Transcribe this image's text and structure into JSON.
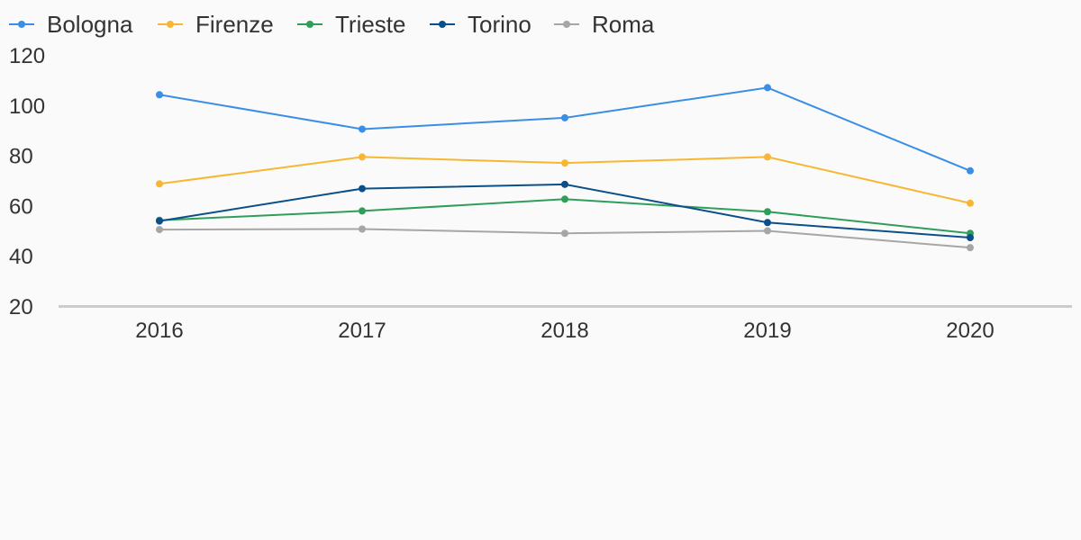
{
  "chart_data": {
    "type": "line",
    "title": "",
    "xlabel": "",
    "ylabel": "",
    "x": [
      "2016",
      "2017",
      "2018",
      "2019",
      "2020"
    ],
    "ylim": [
      20,
      120
    ],
    "yticks": [
      "20",
      "40",
      "60",
      "80",
      "100",
      "120"
    ],
    "grid": false,
    "legend_position": "top-left",
    "series": [
      {
        "name": "Bologna",
        "color": "#3a8ee6",
        "values": [
          104.5,
          90.8,
          95.3,
          107.3,
          74.2
        ]
      },
      {
        "name": "Firenze",
        "color": "#f7b733",
        "values": [
          69.0,
          79.7,
          77.3,
          79.7,
          61.3
        ]
      },
      {
        "name": "Trieste",
        "color": "#2e9e58",
        "values": [
          54.5,
          58.2,
          62.9,
          57.9,
          49.3
        ]
      },
      {
        "name": "Torino",
        "color": "#0b4f8a",
        "values": [
          54.2,
          67.1,
          68.8,
          53.6,
          47.6
        ]
      },
      {
        "name": "Roma",
        "color": "#a6a6a6",
        "values": [
          50.8,
          51.0,
          49.3,
          50.3,
          43.6
        ]
      }
    ]
  }
}
